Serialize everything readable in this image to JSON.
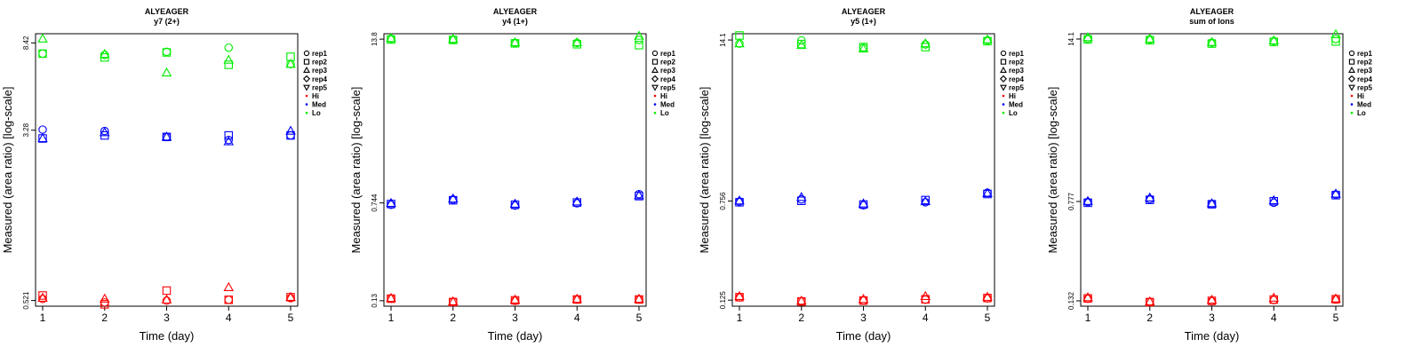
{
  "colors": {
    "Hi": "#ff0000",
    "Med": "#0000ff",
    "Lo": "#00ee00"
  },
  "legend": {
    "entries": [
      {
        "label": "rep1",
        "kind": "shape",
        "shape": "circle"
      },
      {
        "label": "rep2",
        "kind": "shape",
        "shape": "square"
      },
      {
        "label": "rep3",
        "kind": "shape",
        "shape": "triangle"
      },
      {
        "label": "rep4",
        "kind": "shape",
        "shape": "diamond"
      },
      {
        "label": "rep5",
        "kind": "shape",
        "shape": "triangle-down"
      },
      {
        "label": "Hi",
        "kind": "color",
        "group": "Hi"
      },
      {
        "label": "Med",
        "kind": "color",
        "group": "Med"
      },
      {
        "label": "Lo",
        "kind": "color",
        "group": "Lo"
      }
    ],
    "placement": "right"
  },
  "chart_data": [
    {
      "type": "scatter",
      "title": "ALYEAGER",
      "subtitle": "y7 (2+)",
      "xlabel": "Time (day)",
      "ylabel": "Measured (area ratio) [log-scale]",
      "x_ticks": [
        "1",
        "2",
        "3",
        "4",
        "5"
      ],
      "y_scale": "log",
      "y_ticks": [
        {
          "value": 0.521,
          "label": "0.521"
        },
        {
          "value": 3.28,
          "label": "3.28"
        },
        {
          "value": 8.42,
          "label": "8.42"
        }
      ],
      "ylim": [
        0.49,
        9.3
      ],
      "grid": false,
      "series": [
        {
          "group": "Hi",
          "rep": "rep1",
          "shape": "circle",
          "x": [
            1,
            2,
            3,
            4,
            5
          ],
          "y": [
            0.53,
            0.51,
            0.52,
            0.525,
            0.535
          ]
        },
        {
          "group": "Hi",
          "rep": "rep2",
          "shape": "square",
          "x": [
            1,
            2,
            3,
            4,
            5
          ],
          "y": [
            0.55,
            0.5,
            0.58,
            0.525,
            0.54
          ]
        },
        {
          "group": "Hi",
          "rep": "rep3",
          "shape": "triangle",
          "x": [
            1,
            2,
            3,
            4,
            5
          ],
          "y": [
            0.535,
            0.53,
            0.525,
            0.6,
            0.54
          ]
        },
        {
          "group": "Med",
          "rep": "rep1",
          "shape": "circle",
          "x": [
            1,
            2,
            3,
            4,
            5
          ],
          "y": [
            3.3,
            3.25,
            3.05,
            2.95,
            3.1
          ]
        },
        {
          "group": "Med",
          "rep": "rep2",
          "shape": "square",
          "x": [
            1,
            2,
            3,
            4,
            5
          ],
          "y": [
            3.0,
            3.1,
            3.05,
            3.1,
            3.1
          ]
        },
        {
          "group": "Med",
          "rep": "rep3",
          "shape": "triangle",
          "x": [
            1,
            2,
            3,
            4,
            5
          ],
          "y": [
            3.0,
            3.2,
            3.05,
            2.9,
            3.25
          ]
        },
        {
          "group": "Lo",
          "rep": "rep1",
          "shape": "circle",
          "x": [
            1,
            2,
            3,
            4,
            5
          ],
          "y": [
            7.5,
            7.4,
            7.65,
            8.0,
            6.7
          ]
        },
        {
          "group": "Lo",
          "rep": "rep2",
          "shape": "square",
          "x": [
            1,
            2,
            3,
            4,
            5
          ],
          "y": [
            7.5,
            7.2,
            7.6,
            6.65,
            7.25
          ]
        },
        {
          "group": "Lo",
          "rep": "rep3",
          "shape": "triangle",
          "x": [
            1,
            2,
            3,
            4,
            5
          ],
          "y": [
            8.8,
            7.45,
            6.1,
            7.0,
            6.7
          ]
        }
      ]
    },
    {
      "type": "scatter",
      "title": "ALYEAGER",
      "subtitle": "y4 (1+)",
      "xlabel": "Time (day)",
      "ylabel": "Measured (area ratio) [log-scale]",
      "x_ticks": [
        "1",
        "2",
        "3",
        "4",
        "5"
      ],
      "y_scale": "log",
      "y_ticks": [
        {
          "value": 0.13,
          "label": "0.13"
        },
        {
          "value": 0.744,
          "label": "0.744"
        },
        {
          "value": 13.8,
          "label": "13.8"
        }
      ],
      "ylim": [
        0.118,
        15.2
      ],
      "grid": false,
      "series": [
        {
          "group": "Hi",
          "rep": "rep1",
          "shape": "circle",
          "x": [
            1,
            2,
            3,
            4,
            5
          ],
          "y": [
            0.135,
            0.128,
            0.13,
            0.133,
            0.133
          ]
        },
        {
          "group": "Hi",
          "rep": "rep2",
          "shape": "square",
          "x": [
            1,
            2,
            3,
            4,
            5
          ],
          "y": [
            0.135,
            0.127,
            0.131,
            0.133,
            0.133
          ]
        },
        {
          "group": "Hi",
          "rep": "rep3",
          "shape": "triangle",
          "x": [
            1,
            2,
            3,
            4,
            5
          ],
          "y": [
            0.136,
            0.128,
            0.132,
            0.134,
            0.134
          ]
        },
        {
          "group": "Med",
          "rep": "rep1",
          "shape": "circle",
          "x": [
            1,
            2,
            3,
            4,
            5
          ],
          "y": [
            0.72,
            0.79,
            0.71,
            0.74,
            0.87
          ]
        },
        {
          "group": "Med",
          "rep": "rep2",
          "shape": "square",
          "x": [
            1,
            2,
            3,
            4,
            5
          ],
          "y": [
            0.73,
            0.78,
            0.72,
            0.75,
            0.84
          ]
        },
        {
          "group": "Med",
          "rep": "rep3",
          "shape": "triangle",
          "x": [
            1,
            2,
            3,
            4,
            5
          ],
          "y": [
            0.74,
            0.8,
            0.73,
            0.76,
            0.85
          ]
        },
        {
          "group": "Lo",
          "rep": "rep1",
          "shape": "circle",
          "x": [
            1,
            2,
            3,
            4,
            5
          ],
          "y": [
            13.9,
            13.7,
            12.9,
            12.9,
            13.6
          ]
        },
        {
          "group": "Lo",
          "rep": "rep2",
          "shape": "square",
          "x": [
            1,
            2,
            3,
            4,
            5
          ],
          "y": [
            13.7,
            13.6,
            12.8,
            12.6,
            12.4
          ]
        },
        {
          "group": "Lo",
          "rep": "rep3",
          "shape": "triangle",
          "x": [
            1,
            2,
            3,
            4,
            5
          ],
          "y": [
            14.0,
            13.8,
            13.0,
            13.0,
            14.6
          ]
        }
      ]
    },
    {
      "type": "scatter",
      "title": "ALYEAGER",
      "subtitle": "y5 (1+)",
      "xlabel": "Time (day)",
      "ylabel": "Measured (area ratio) [log-scale]",
      "x_ticks": [
        "1",
        "2",
        "3",
        "4",
        "5"
      ],
      "y_scale": "log",
      "y_ticks": [
        {
          "value": 0.125,
          "label": "0.125"
        },
        {
          "value": 0.756,
          "label": "0.756"
        },
        {
          "value": 14.1,
          "label": "14.1"
        }
      ],
      "ylim": [
        0.112,
        15.8
      ],
      "grid": false,
      "series": [
        {
          "group": "Hi",
          "rep": "rep1",
          "shape": "circle",
          "x": [
            1,
            2,
            3,
            4,
            5
          ],
          "y": [
            0.131,
            0.123,
            0.124,
            0.126,
            0.129
          ]
        },
        {
          "group": "Hi",
          "rep": "rep2",
          "shape": "square",
          "x": [
            1,
            2,
            3,
            4,
            5
          ],
          "y": [
            0.132,
            0.122,
            0.124,
            0.127,
            0.13
          ]
        },
        {
          "group": "Hi",
          "rep": "rep3",
          "shape": "triangle",
          "x": [
            1,
            2,
            3,
            4,
            5
          ],
          "y": [
            0.134,
            0.123,
            0.127,
            0.134,
            0.132
          ]
        },
        {
          "group": "Med",
          "rep": "rep1",
          "shape": "circle",
          "x": [
            1,
            2,
            3,
            4,
            5
          ],
          "y": [
            0.75,
            0.78,
            0.7,
            0.74,
            0.88
          ]
        },
        {
          "group": "Med",
          "rep": "rep2",
          "shape": "square",
          "x": [
            1,
            2,
            3,
            4,
            5
          ],
          "y": [
            0.74,
            0.76,
            0.71,
            0.77,
            0.86
          ]
        },
        {
          "group": "Med",
          "rep": "rep3",
          "shape": "triangle",
          "x": [
            1,
            2,
            3,
            4,
            5
          ],
          "y": [
            0.76,
            0.81,
            0.72,
            0.75,
            0.87
          ]
        },
        {
          "group": "Lo",
          "rep": "rep1",
          "shape": "circle",
          "x": [
            1,
            2,
            3,
            4,
            5
          ],
          "y": [
            13.2,
            14.0,
            12.2,
            13.0,
            14.0
          ]
        },
        {
          "group": "Lo",
          "rep": "rep2",
          "shape": "square",
          "x": [
            1,
            2,
            3,
            4,
            5
          ],
          "y": [
            15.3,
            13.1,
            12.4,
            12.4,
            13.8
          ]
        },
        {
          "group": "Lo",
          "rep": "rep3",
          "shape": "triangle",
          "x": [
            1,
            2,
            3,
            4,
            5
          ],
          "y": [
            13.2,
            12.8,
            12.0,
            13.2,
            14.2
          ]
        }
      ]
    },
    {
      "type": "scatter",
      "title": "ALYEAGER",
      "subtitle": "sum of Ions",
      "xlabel": "Time (day)",
      "ylabel": "Measured (area ratio) [log-scale]",
      "x_ticks": [
        "1",
        "2",
        "3",
        "4",
        "5"
      ],
      "y_scale": "log",
      "y_ticks": [
        {
          "value": 0.132,
          "label": "0.132"
        },
        {
          "value": 0.777,
          "label": "0.777"
        },
        {
          "value": 14.1,
          "label": "14.1"
        }
      ],
      "ylim": [
        0.12,
        15.5
      ],
      "grid": false,
      "series": [
        {
          "group": "Hi",
          "rep": "rep1",
          "shape": "circle",
          "x": [
            1,
            2,
            3,
            4,
            5
          ],
          "y": [
            0.137,
            0.13,
            0.131,
            0.134,
            0.135
          ]
        },
        {
          "group": "Hi",
          "rep": "rep2",
          "shape": "square",
          "x": [
            1,
            2,
            3,
            4,
            5
          ],
          "y": [
            0.138,
            0.129,
            0.132,
            0.135,
            0.136
          ]
        },
        {
          "group": "Hi",
          "rep": "rep3",
          "shape": "triangle",
          "x": [
            1,
            2,
            3,
            4,
            5
          ],
          "y": [
            0.14,
            0.13,
            0.134,
            0.139,
            0.137
          ]
        },
        {
          "group": "Med",
          "rep": "rep1",
          "shape": "circle",
          "x": [
            1,
            2,
            3,
            4,
            5
          ],
          "y": [
            0.77,
            0.81,
            0.74,
            0.76,
            0.88
          ]
        },
        {
          "group": "Med",
          "rep": "rep2",
          "shape": "square",
          "x": [
            1,
            2,
            3,
            4,
            5
          ],
          "y": [
            0.76,
            0.8,
            0.74,
            0.78,
            0.87
          ]
        },
        {
          "group": "Med",
          "rep": "rep3",
          "shape": "triangle",
          "x": [
            1,
            2,
            3,
            4,
            5
          ],
          "y": [
            0.78,
            0.83,
            0.75,
            0.79,
            0.89
          ]
        },
        {
          "group": "Lo",
          "rep": "rep1",
          "shape": "circle",
          "x": [
            1,
            2,
            3,
            4,
            5
          ],
          "y": [
            14.2,
            14.0,
            13.2,
            13.6,
            14.1
          ]
        },
        {
          "group": "Lo",
          "rep": "rep2",
          "shape": "square",
          "x": [
            1,
            2,
            3,
            4,
            5
          ],
          "y": [
            14.0,
            13.8,
            13.0,
            13.4,
            13.5
          ]
        },
        {
          "group": "Lo",
          "rep": "rep3",
          "shape": "triangle",
          "x": [
            1,
            2,
            3,
            4,
            5
          ],
          "y": [
            14.5,
            14.1,
            13.3,
            13.7,
            15.3
          ]
        }
      ]
    }
  ]
}
